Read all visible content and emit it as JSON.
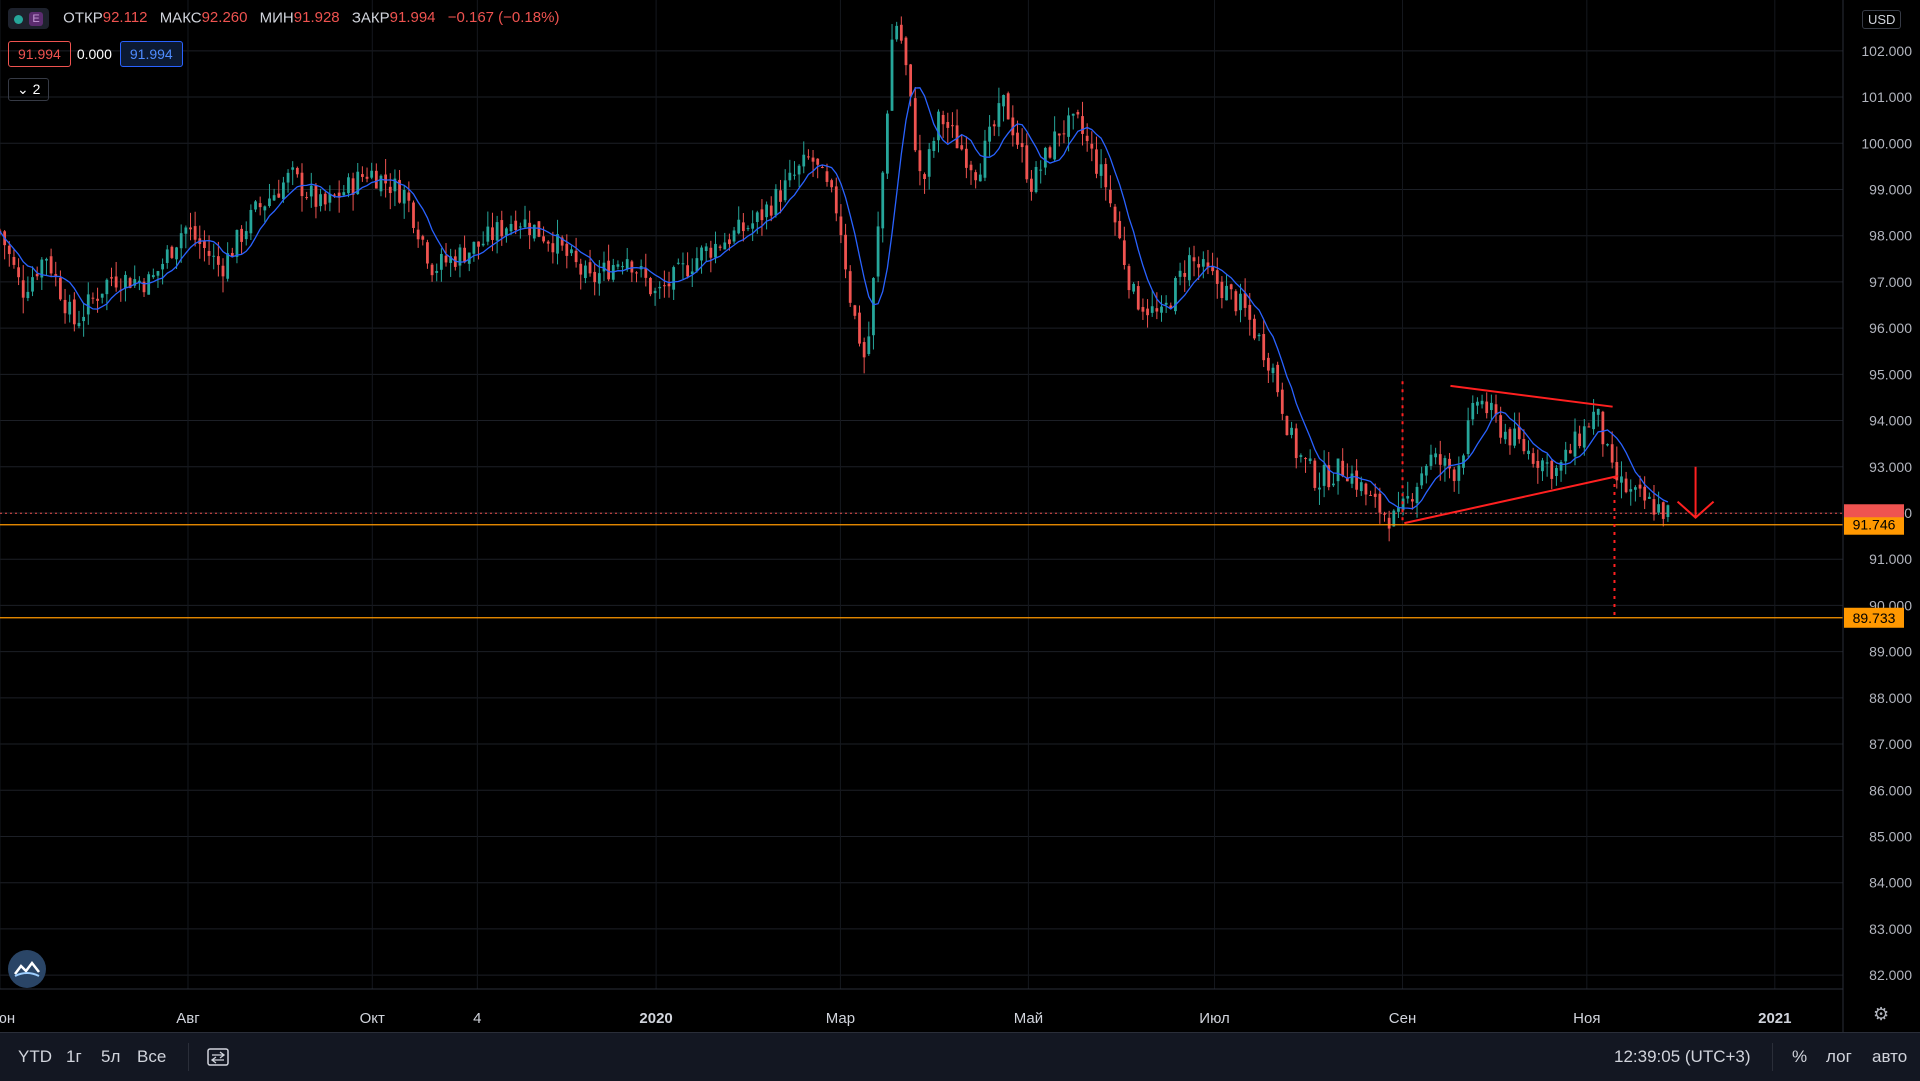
{
  "legend": {
    "open_label": "ОТКР",
    "open": "92.112",
    "high_label": "МАКС",
    "high": "92.260",
    "low_label": "МИН",
    "low": "91.928",
    "close_label": "ЗАКР",
    "close": "91.994",
    "change": "−0.167 (−0.18%)",
    "dot_icon": "green-dot",
    "e_badge": "E"
  },
  "values_row": {
    "price": "91.994",
    "zero": "0.000",
    "ma": "91.994"
  },
  "study_toggle": "2",
  "currency": "USD",
  "bottom_bar": {
    "ranges": [
      "YTD",
      "1г",
      "5л",
      "Все"
    ],
    "time": "12:39:05 (UTC+3)",
    "percent": "%",
    "log": "лог",
    "auto": "авто"
  },
  "colors": {
    "up": "#26a69a",
    "down": "#ef5350",
    "ma": "#2962ff",
    "annotation": "#ff2020",
    "level": "#ff9800",
    "background": "#000000"
  },
  "chart_data": {
    "type": "candlestick",
    "ylim": [
      81.7,
      103.1
    ],
    "y_ticks": [
      "82.000",
      "83.000",
      "84.000",
      "85.000",
      "86.000",
      "87.000",
      "88.000",
      "89.000",
      "90.000",
      "91.000",
      "92.000",
      "93.000",
      "94.000",
      "95.000",
      "96.000",
      "97.000",
      "98.000",
      "99.000",
      "100.000",
      "101.000",
      "102.000"
    ],
    "x_ticks": [
      {
        "label": "Июн",
        "bold": false,
        "t": 0.0
      },
      {
        "label": "Авг",
        "bold": false,
        "t": 0.102
      },
      {
        "label": "Окт",
        "bold": false,
        "t": 0.202
      },
      {
        "label": "4",
        "bold": false,
        "t": 0.259
      },
      {
        "label": "2020",
        "bold": true,
        "t": 0.356
      },
      {
        "label": "Мар",
        "bold": false,
        "t": 0.456
      },
      {
        "label": "Май",
        "bold": false,
        "t": 0.558
      },
      {
        "label": "Июл",
        "bold": false,
        "t": 0.659
      },
      {
        "label": "Сен",
        "bold": false,
        "t": 0.761
      },
      {
        "label": "Ноя",
        "bold": false,
        "t": 0.861
      },
      {
        "label": "2021",
        "bold": true,
        "t": 0.963
      }
    ],
    "price_path": [
      [
        0.0,
        98.1
      ],
      [
        0.012,
        96.8
      ],
      [
        0.025,
        97.6
      ],
      [
        0.04,
        96.1
      ],
      [
        0.06,
        97.1
      ],
      [
        0.082,
        97.0
      ],
      [
        0.1,
        98.2
      ],
      [
        0.12,
        97.3
      ],
      [
        0.138,
        98.5
      ],
      [
        0.158,
        99.3
      ],
      [
        0.175,
        98.6
      ],
      [
        0.2,
        99.4
      ],
      [
        0.22,
        98.9
      ],
      [
        0.235,
        97.3
      ],
      [
        0.26,
        97.8
      ],
      [
        0.28,
        98.4
      ],
      [
        0.3,
        97.9
      ],
      [
        0.32,
        97.0
      ],
      [
        0.34,
        97.6
      ],
      [
        0.356,
        96.7
      ],
      [
        0.38,
        97.6
      ],
      [
        0.41,
        98.3
      ],
      [
        0.44,
        99.7
      ],
      [
        0.455,
        98.5
      ],
      [
        0.462,
        96.5
      ],
      [
        0.47,
        95.2
      ],
      [
        0.478,
        98.8
      ],
      [
        0.485,
        102.8
      ],
      [
        0.49,
        102.1
      ],
      [
        0.5,
        99.0
      ],
      [
        0.51,
        100.6
      ],
      [
        0.53,
        99.4
      ],
      [
        0.545,
        100.9
      ],
      [
        0.56,
        99.1
      ],
      [
        0.575,
        100.3
      ],
      [
        0.585,
        100.4
      ],
      [
        0.6,
        99.1
      ],
      [
        0.615,
        96.7
      ],
      [
        0.63,
        96.2
      ],
      [
        0.645,
        97.5
      ],
      [
        0.66,
        97.0
      ],
      [
        0.675,
        96.4
      ],
      [
        0.69,
        95.2
      ],
      [
        0.702,
        93.4
      ],
      [
        0.715,
        92.7
      ],
      [
        0.73,
        93.0
      ],
      [
        0.745,
        92.2
      ],
      [
        0.758,
        91.8
      ],
      [
        0.775,
        93.2
      ],
      [
        0.79,
        92.9
      ],
      [
        0.802,
        94.5
      ],
      [
        0.815,
        93.8
      ],
      [
        0.83,
        93.3
      ],
      [
        0.845,
        92.9
      ],
      [
        0.858,
        93.7
      ],
      [
        0.866,
        94.2
      ],
      [
        0.875,
        92.8
      ],
      [
        0.885,
        92.4
      ],
      [
        0.9,
        92.1
      ],
      [
        0.905,
        91.99
      ]
    ],
    "levels": [
      {
        "value": 91.746,
        "label": "91.746",
        "color": "#ff9800"
      },
      {
        "value": 89.733,
        "label": "89.733",
        "color": "#ff9800"
      }
    ],
    "last_price": {
      "value": 91.994,
      "label": "91.994",
      "color": "#ef5350"
    },
    "annotations": {
      "triangle_upper": [
        [
          0.787,
          94.75
        ],
        [
          0.875,
          94.3
        ]
      ],
      "triangle_lower": [
        [
          0.762,
          91.78
        ],
        [
          0.878,
          92.8
        ]
      ],
      "vline_left": {
        "t": 0.761,
        "from": 91.78,
        "to": 94.85
      },
      "vline_right": {
        "t": 0.876,
        "from": 89.73,
        "to": 92.8
      },
      "arrow": {
        "t": 0.92,
        "from": 93.0,
        "to": 91.9
      }
    }
  }
}
